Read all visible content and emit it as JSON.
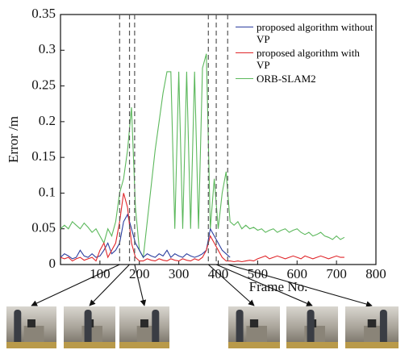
{
  "chart_data": {
    "type": "line",
    "xlabel": "Frame No.",
    "ylabel": "Error /m",
    "xlim": [
      0,
      800
    ],
    "xticks": [
      100,
      200,
      300,
      400,
      500,
      600,
      700,
      800
    ],
    "ylim": [
      0,
      0.35
    ],
    "yticks": [
      0,
      0.05,
      0.1,
      0.15,
      0.2,
      0.25,
      0.3,
      0.35
    ],
    "markers": [
      150,
      175,
      188,
      375,
      395,
      424
    ],
    "x": [
      0,
      10,
      20,
      30,
      40,
      50,
      60,
      70,
      80,
      90,
      100,
      110,
      120,
      130,
      140,
      150,
      160,
      170,
      180,
      190,
      200,
      210,
      220,
      230,
      240,
      250,
      260,
      270,
      280,
      290,
      300,
      310,
      320,
      330,
      340,
      350,
      360,
      370,
      380,
      390,
      400,
      410,
      420,
      430,
      440,
      450,
      460,
      470,
      480,
      490,
      500,
      510,
      520,
      530,
      540,
      550,
      560,
      570,
      580,
      590,
      600,
      610,
      620,
      630,
      640,
      650,
      660,
      670,
      680,
      690,
      700,
      710,
      720
    ],
    "series": [
      {
        "name": "ORB-SLAM2",
        "color": "#5cb85c",
        "values": [
          0.05,
          0.055,
          0.05,
          0.06,
          0.055,
          0.05,
          0.058,
          0.052,
          0.045,
          0.05,
          0.04,
          0.03,
          0.05,
          0.04,
          0.06,
          0.1,
          0.12,
          0.16,
          0.22,
          0.08,
          0.02,
          0.01,
          0.06,
          0.11,
          0.16,
          0.2,
          0.24,
          0.27,
          0.27,
          0.05,
          0.27,
          0.05,
          0.27,
          0.05,
          0.27,
          0.05,
          0.275,
          0.295,
          0.05,
          0.12,
          0.05,
          0.1,
          0.13,
          0.06,
          0.055,
          0.06,
          0.05,
          0.055,
          0.05,
          0.052,
          0.048,
          0.05,
          0.045,
          0.048,
          0.05,
          0.045,
          0.048,
          0.05,
          0.045,
          0.048,
          0.05,
          0.045,
          0.042,
          0.045,
          0.04,
          0.042,
          0.045,
          0.04,
          0.038,
          0.035,
          0.04,
          0.035,
          0.038
        ]
      },
      {
        "name": "proposed algorithm without VP",
        "color": "#2b3d9e",
        "values": [
          0.01,
          0.015,
          0.012,
          0.008,
          0.01,
          0.02,
          0.012,
          0.01,
          0.015,
          0.01,
          0.012,
          0.02,
          0.03,
          0.015,
          0.02,
          0.03,
          0.06,
          0.07,
          0.05,
          0.03,
          0.02,
          0.01,
          0.015,
          0.012,
          0.01,
          0.015,
          0.012,
          0.02,
          0.01,
          0.015,
          0.012,
          0.01,
          0.015,
          0.012,
          0.01,
          0.012,
          0.015,
          0.02,
          0.05,
          0.04,
          0.03,
          0.02,
          0.015,
          0.01,
          null,
          null,
          null,
          null,
          null,
          null,
          null,
          null,
          null,
          null,
          null,
          null,
          null,
          null,
          null,
          null,
          null,
          null,
          null,
          null,
          null,
          null,
          null,
          null,
          null,
          null,
          null,
          null,
          null
        ]
      },
      {
        "name": "proposed algorithm with VP",
        "color": "#e0262a",
        "values": [
          0.01,
          0.008,
          0.01,
          0.005,
          0.008,
          0.01,
          0.006,
          0.008,
          0.01,
          0.005,
          0.02,
          0.03,
          0.01,
          0.02,
          0.03,
          0.06,
          0.1,
          0.08,
          0.03,
          0.01,
          0.005,
          0.005,
          0.008,
          0.006,
          0.005,
          0.008,
          0.006,
          0.005,
          0.008,
          0.006,
          0.005,
          0.008,
          0.006,
          0.005,
          0.008,
          0.006,
          0.01,
          0.02,
          0.04,
          0.03,
          0.02,
          0.01,
          0.005,
          0.005,
          0.004,
          0.005,
          0.004,
          0.005,
          0.006,
          0.005,
          0.008,
          0.01,
          0.012,
          0.008,
          0.01,
          0.012,
          0.01,
          0.008,
          0.01,
          0.012,
          0.01,
          0.008,
          0.012,
          0.01,
          0.008,
          0.01,
          0.012,
          0.01,
          0.008,
          0.01,
          0.012,
          0.01,
          0.01
        ]
      }
    ],
    "legend_order": [
      1,
      2,
      0
    ]
  }
}
